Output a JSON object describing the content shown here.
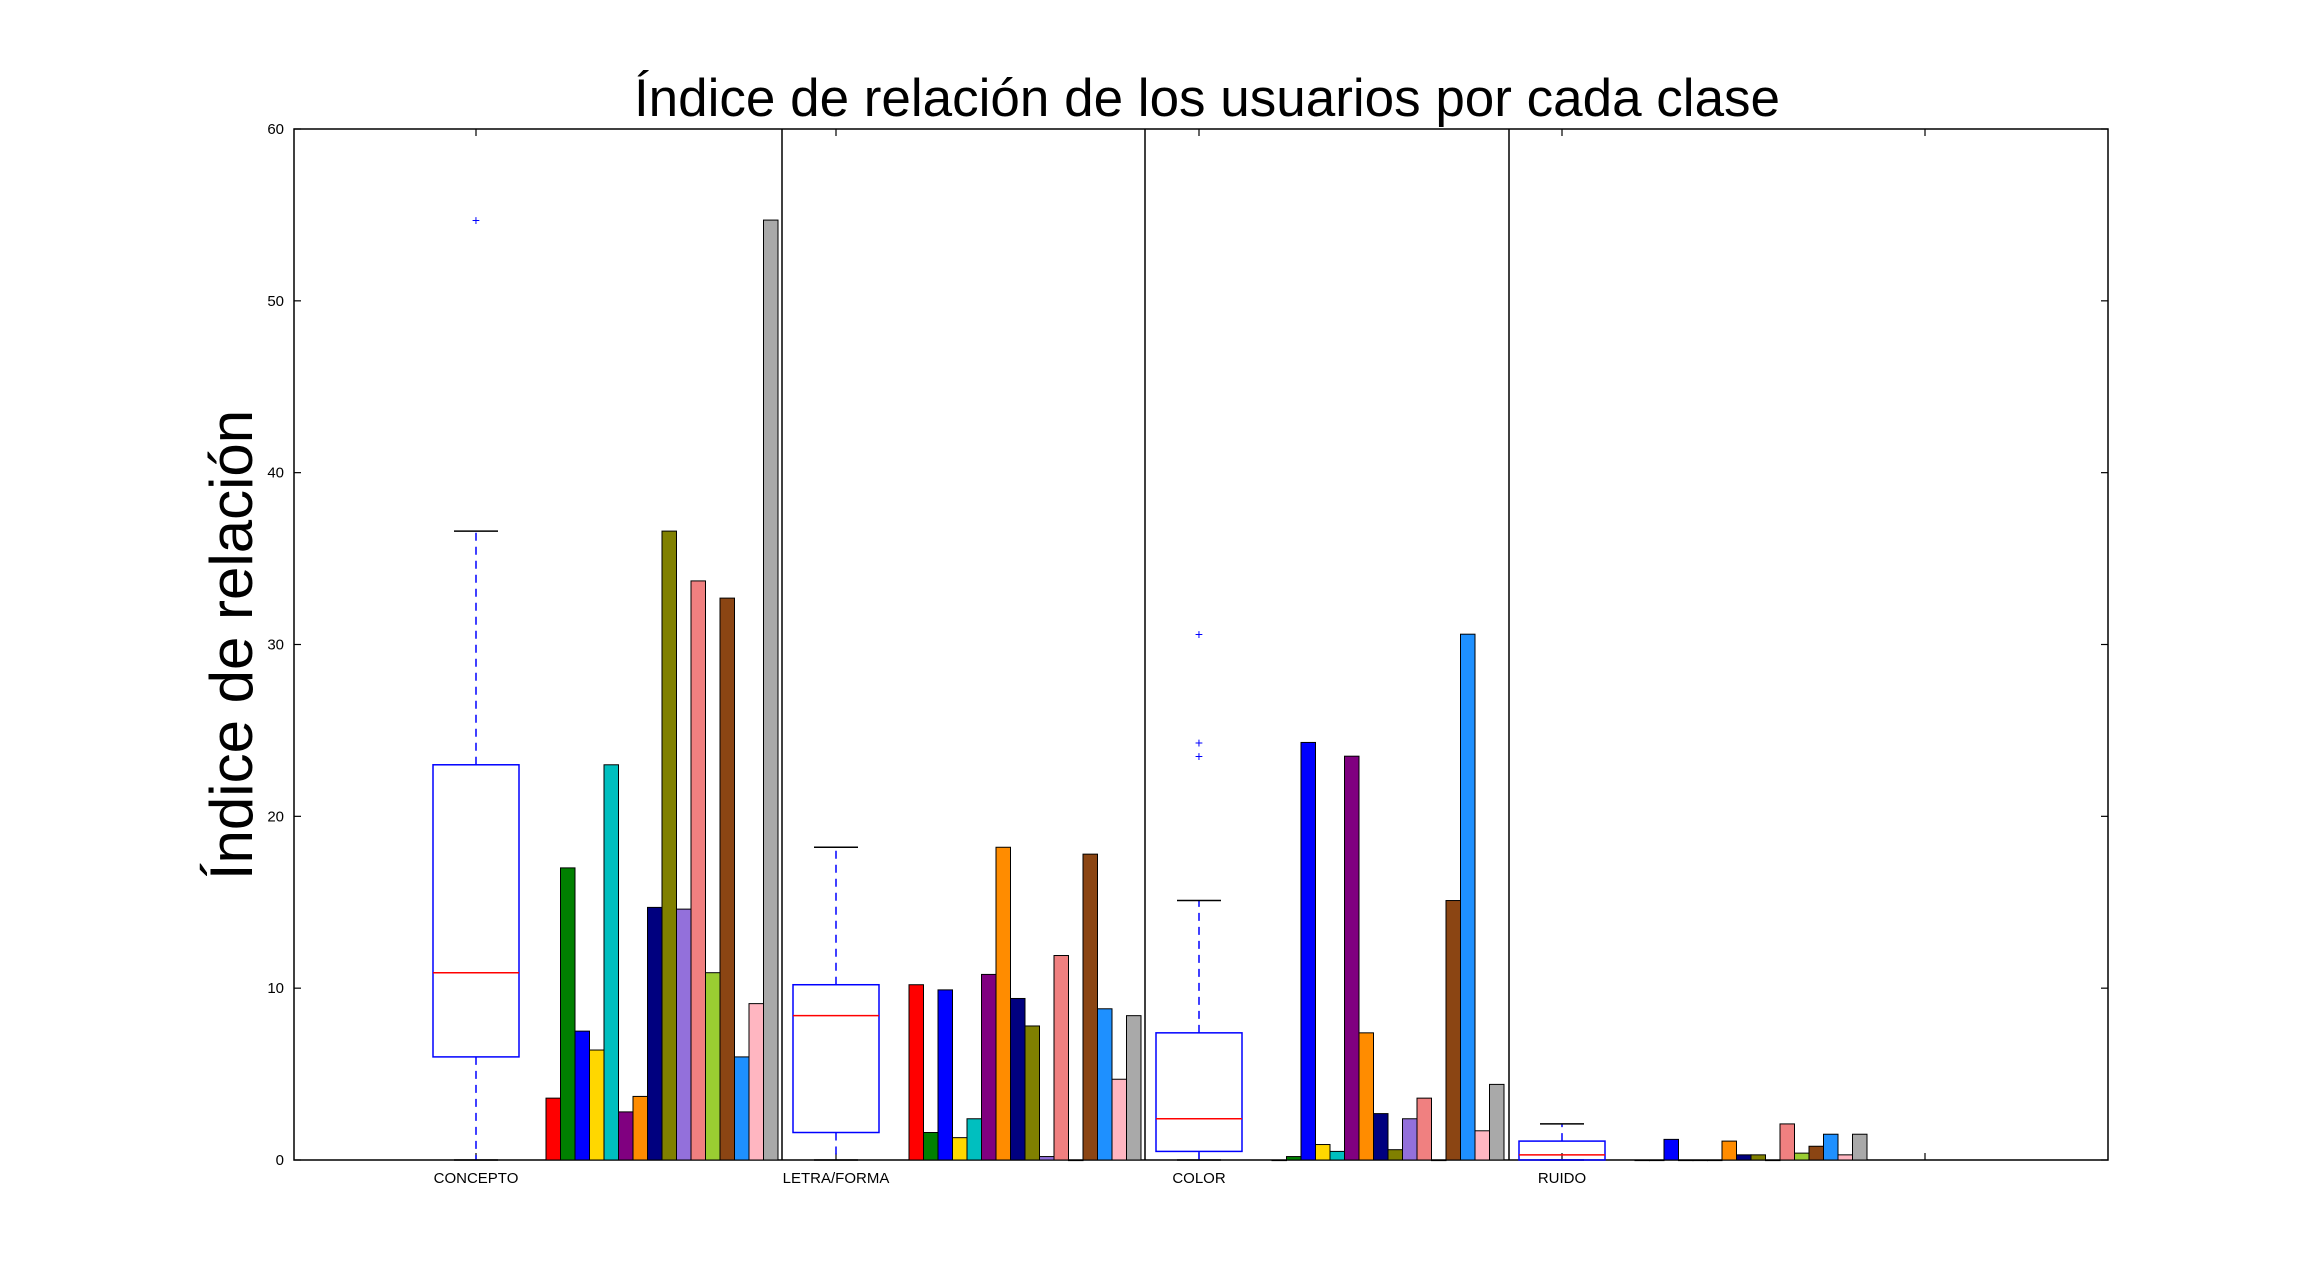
{
  "chart_data": {
    "type": "bar",
    "title": "Índice de relación de los usuarios por cada clase",
    "ylabel": "Índice de relación",
    "xlabel": "",
    "ylim": [
      0,
      60
    ],
    "yticks": [
      0,
      10,
      20,
      30,
      40,
      50,
      60
    ],
    "grid": false,
    "categories": [
      "CONCEPTO",
      "LETRA/FORMA",
      "COLOR",
      "RUIDO"
    ],
    "series_colors": [
      "#ff0000",
      "#008000",
      "#0000ff",
      "#ffd700",
      "#00bfbf",
      "#800080",
      "#ff8c00",
      "#00007f",
      "#808000",
      "#9370db",
      "#f08080",
      "#9acd32",
      "#8b4513",
      "#1e90ff",
      "#ffb6c1",
      "#a9a9a9"
    ],
    "series": [
      {
        "values": [
          3.6,
          10.2,
          0.0,
          0.0
        ]
      },
      {
        "values": [
          17.0,
          1.6,
          0.2,
          0.0
        ]
      },
      {
        "values": [
          7.5,
          9.9,
          24.3,
          1.2
        ]
      },
      {
        "values": [
          6.4,
          1.3,
          0.9,
          0.0
        ]
      },
      {
        "values": [
          23.0,
          2.4,
          0.5,
          0.0
        ]
      },
      {
        "values": [
          2.8,
          10.8,
          23.5,
          0.0
        ]
      },
      {
        "values": [
          3.7,
          18.2,
          7.4,
          1.1
        ]
      },
      {
        "values": [
          14.7,
          9.4,
          2.7,
          0.3
        ]
      },
      {
        "values": [
          36.6,
          7.8,
          0.6,
          0.3
        ]
      },
      {
        "values": [
          14.6,
          0.2,
          2.4,
          0.0
        ]
      },
      {
        "values": [
          33.7,
          11.9,
          3.6,
          2.1
        ]
      },
      {
        "values": [
          10.9,
          0.0,
          0.0,
          0.4
        ]
      },
      {
        "values": [
          32.7,
          17.8,
          15.1,
          0.8
        ]
      },
      {
        "values": [
          6.0,
          8.8,
          30.6,
          1.5
        ]
      },
      {
        "values": [
          9.1,
          4.7,
          1.7,
          0.3
        ]
      },
      {
        "values": [
          54.7,
          8.4,
          4.4,
          1.5
        ]
      }
    ],
    "boxplots": [
      {
        "category": "CONCEPTO",
        "whisker_low": 0,
        "q1": 6.0,
        "median": 10.9,
        "q3": 23.0,
        "whisker_high": 36.6,
        "outliers": [
          54.7
        ]
      },
      {
        "category": "LETRA/FORMA",
        "whisker_low": 0,
        "q1": 1.6,
        "median": 8.4,
        "q3": 10.2,
        "whisker_high": 18.2,
        "outliers": []
      },
      {
        "category": "COLOR",
        "whisker_low": 0,
        "q1": 0.5,
        "median": 2.4,
        "q3": 7.4,
        "whisker_high": 15.1,
        "outliers": [
          23.5,
          24.3,
          30.6
        ]
      },
      {
        "category": "RUIDO",
        "whisker_low": 0,
        "q1": 0.0,
        "median": 0.3,
        "q3": 1.1,
        "whisker_high": 2.1,
        "outliers": []
      }
    ],
    "colors": {
      "box": "#0000ff",
      "median": "#ff0000",
      "axis": "#000000"
    }
  }
}
